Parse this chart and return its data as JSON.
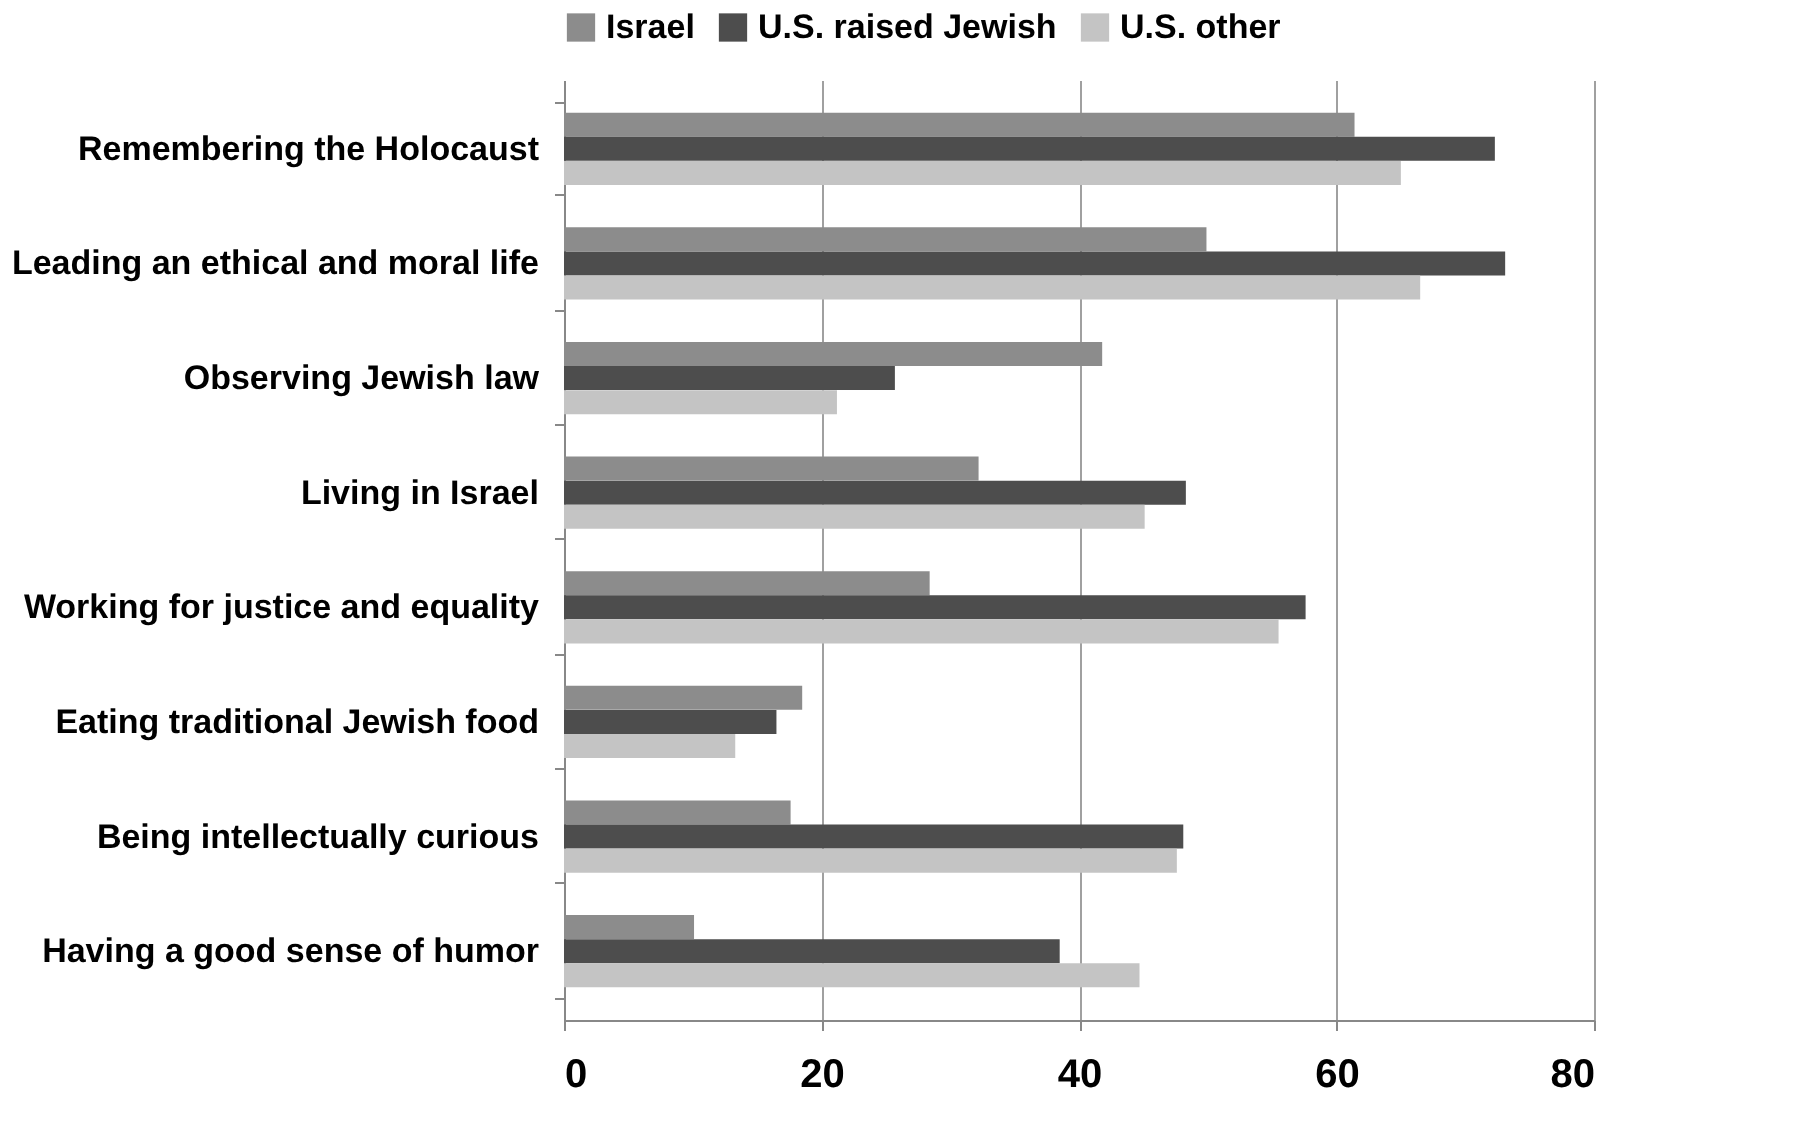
{
  "chart_data": {
    "type": "bar",
    "orientation": "horizontal",
    "categories": [
      "Remembering the Holocaust",
      "Leading an ethical and moral life",
      "Observing Jewish law",
      "Living in Israel",
      "Working for justice and equality",
      "Eating traditional Jewish food",
      "Being intellectually curious",
      "Having a good sense of humor"
    ],
    "series": [
      {
        "name": "Israel",
        "color": "#8c8c8c",
        "values": [
          61.4,
          49.9,
          41.8,
          32.2,
          28.4,
          18.5,
          17.6,
          10.1
        ]
      },
      {
        "name": "U.S. raised Jewish",
        "color": "#4d4d4d",
        "values": [
          72.3,
          73.1,
          25.7,
          48.3,
          57.6,
          16.5,
          48.1,
          38.5
        ]
      },
      {
        "name": "U.S. other",
        "color": "#c4c4c4",
        "values": [
          65.0,
          66.5,
          21.2,
          45.1,
          55.5,
          13.3,
          47.6,
          44.7
        ]
      }
    ],
    "xlim": [
      0,
      80
    ],
    "xticks": [
      0,
      20,
      40,
      60,
      80
    ],
    "grid": "x",
    "legend": "top"
  }
}
